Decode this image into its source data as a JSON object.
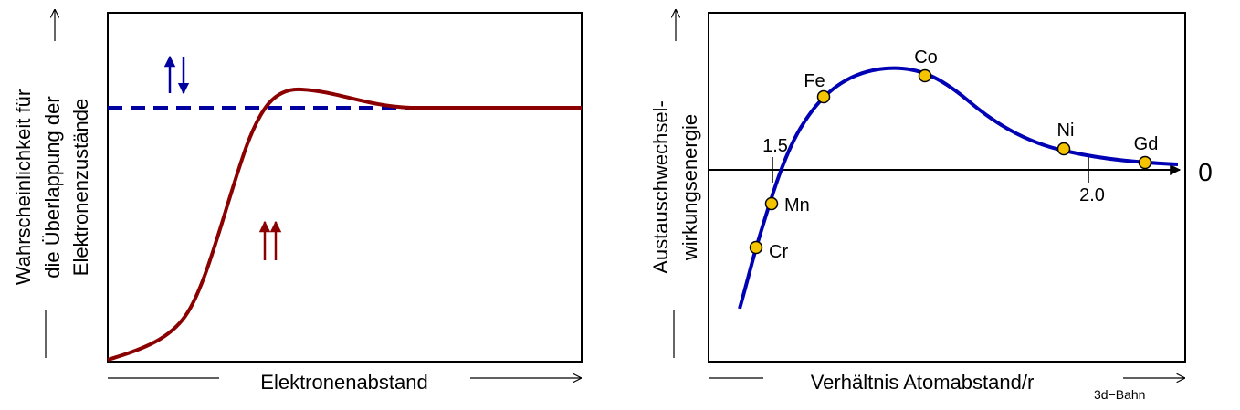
{
  "left": {
    "y_label": [
      "Wahrscheinlichkeit für",
      "die Überlappung der",
      "Elektronenzustände"
    ],
    "x_label": "Elektronenabstand"
  },
  "right": {
    "y_label": [
      "Austauschwechsel-",
      "wirkungsenergie"
    ],
    "x_label": "Verhältnis Atomabstand/r",
    "x_label_sub": "3d−Bahn",
    "tick_labels": [
      "1.5",
      "2.0"
    ],
    "zero_label": "0",
    "points": [
      {
        "label": "Cr"
      },
      {
        "label": "Mn"
      },
      {
        "label": "Fe"
      },
      {
        "label": "Co"
      },
      {
        "label": "Ni"
      },
      {
        "label": "Gd"
      }
    ]
  }
}
